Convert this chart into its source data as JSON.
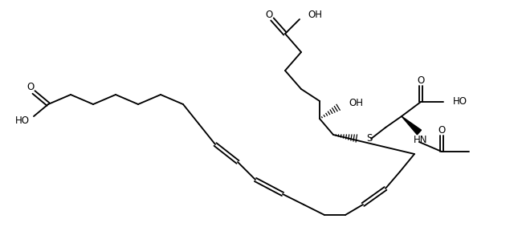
{
  "bg": "#ffffff",
  "lw": 1.35,
  "fs": 8.5,
  "doff": 2.3,
  "figsize": [
    6.45,
    2.88
  ],
  "dpi": 100,
  "xlim": [
    0,
    645
  ],
  "ylim": [
    288,
    0
  ]
}
